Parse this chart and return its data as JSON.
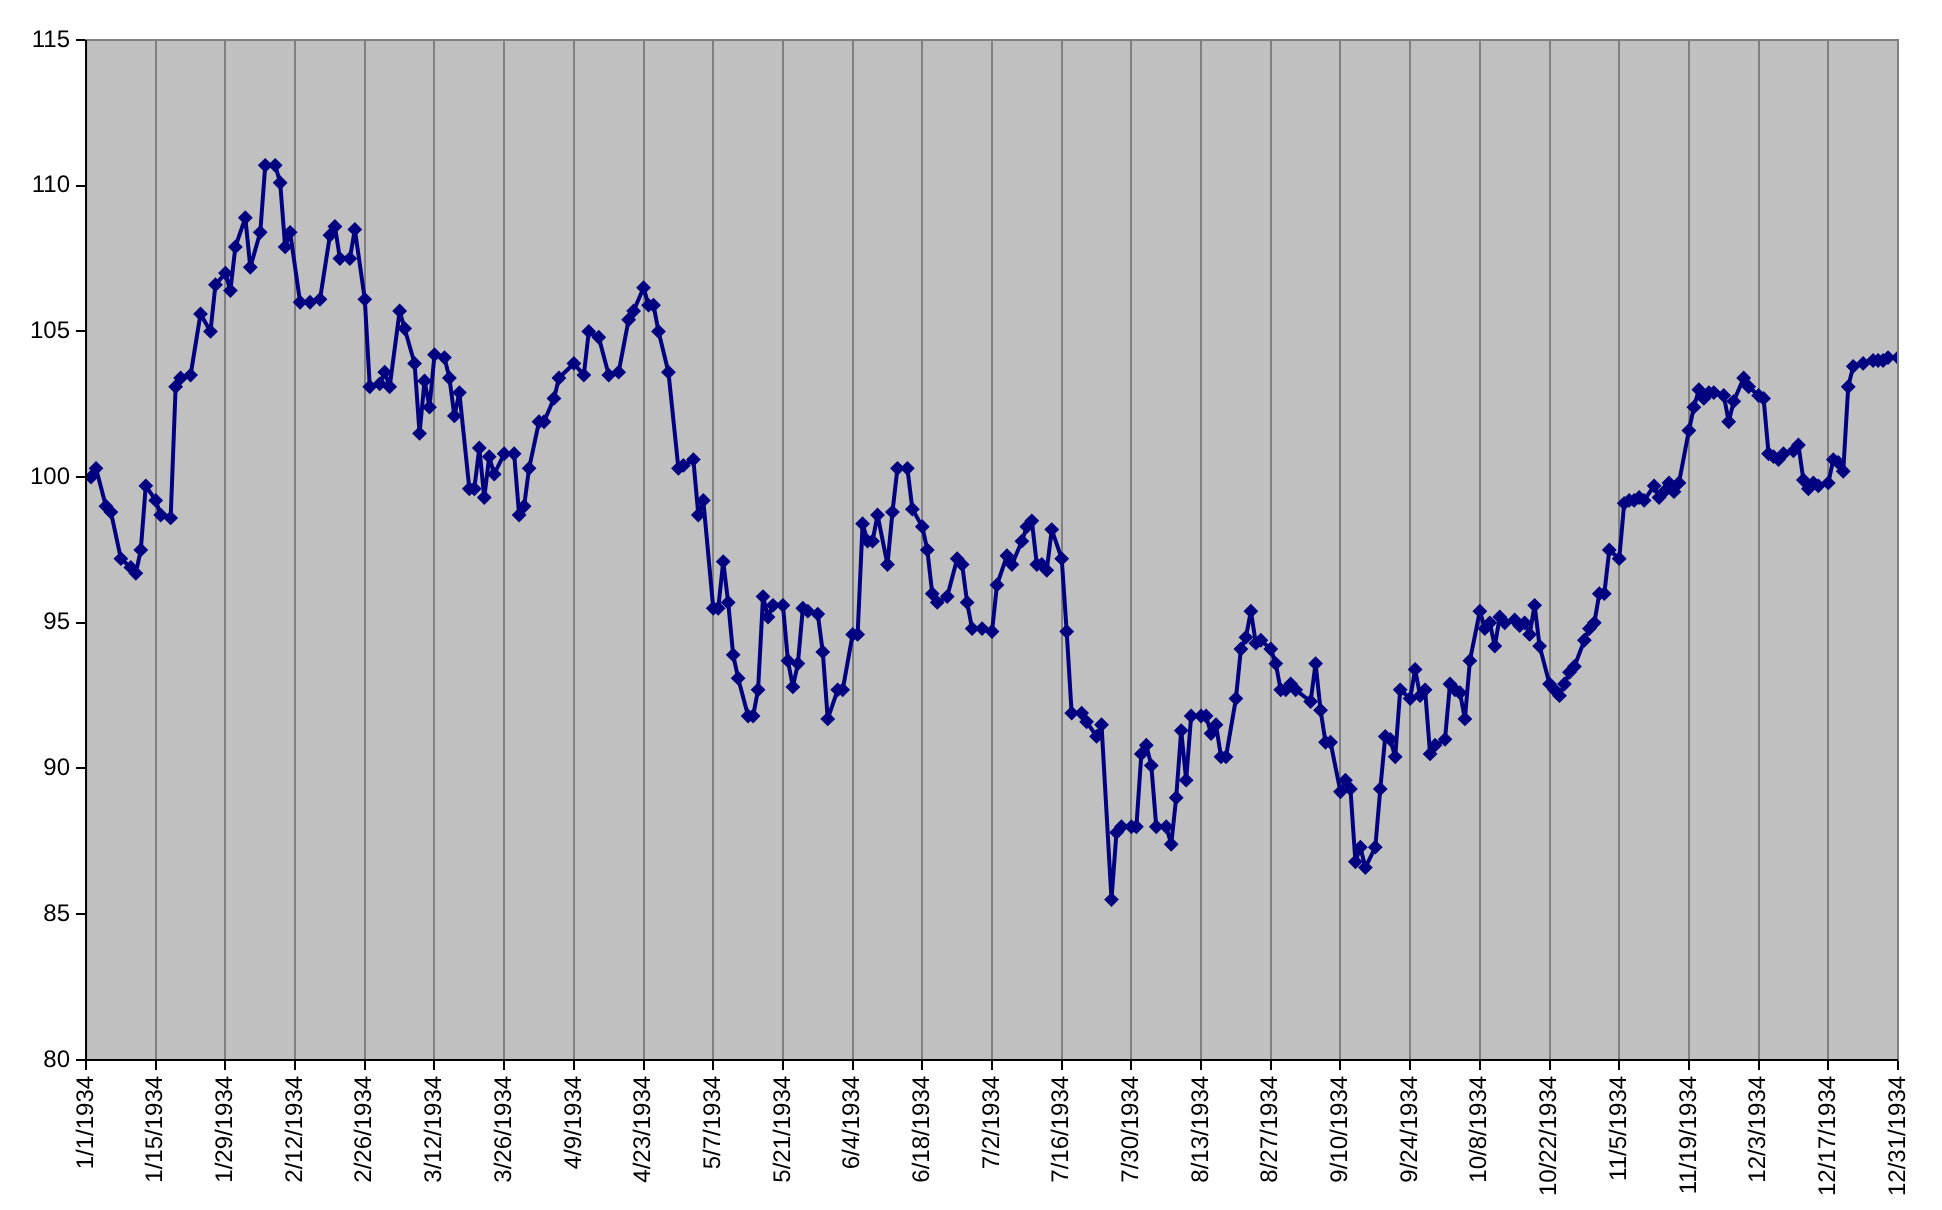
{
  "chart_data": {
    "type": "line",
    "x": [
      "1934-01-02",
      "1934-01-03",
      "1934-01-05",
      "1934-01-06",
      "1934-01-08",
      "1934-01-10",
      "1934-01-11",
      "1934-01-12",
      "1934-01-13",
      "1934-01-15",
      "1934-01-16",
      "1934-01-18",
      "1934-01-19",
      "1934-01-20",
      "1934-01-22",
      "1934-01-24",
      "1934-01-26",
      "1934-01-27",
      "1934-01-29",
      "1934-01-30",
      "1934-01-31",
      "1934-02-02",
      "1934-02-03",
      "1934-02-05",
      "1934-02-06",
      "1934-02-08",
      "1934-02-09",
      "1934-02-10",
      "1934-02-11",
      "1934-02-13",
      "1934-02-15",
      "1934-02-17",
      "1934-02-19",
      "1934-02-20",
      "1934-02-21",
      "1934-02-23",
      "1934-02-24",
      "1934-02-26",
      "1934-02-27",
      "1934-03-01",
      "1934-03-02",
      "1934-03-03",
      "1934-03-05",
      "1934-03-06",
      "1934-03-08",
      "1934-03-09",
      "1934-03-10",
      "1934-03-11",
      "1934-03-12",
      "1934-03-14",
      "1934-03-15",
      "1934-03-16",
      "1934-03-17",
      "1934-03-19",
      "1934-03-20",
      "1934-03-21",
      "1934-03-22",
      "1934-03-23",
      "1934-03-24",
      "1934-03-26",
      "1934-03-28",
      "1934-03-29",
      "1934-03-30",
      "1934-03-31",
      "1934-04-02",
      "1934-04-03",
      "1934-04-05",
      "1934-04-06",
      "1934-04-09",
      "1934-04-11",
      "1934-04-12",
      "1934-04-14",
      "1934-04-16",
      "1934-04-18",
      "1934-04-20",
      "1934-04-21",
      "1934-04-23",
      "1934-04-24",
      "1934-04-25",
      "1934-04-26",
      "1934-04-28",
      "1934-04-30",
      "1934-05-01",
      "1934-05-03",
      "1934-05-04",
      "1934-05-05",
      "1934-05-07",
      "1934-05-08",
      "1934-05-09",
      "1934-05-10",
      "1934-05-11",
      "1934-05-12",
      "1934-05-14",
      "1934-05-15",
      "1934-05-16",
      "1934-05-17",
      "1934-05-18",
      "1934-05-19",
      "1934-05-21",
      "1934-05-22",
      "1934-05-23",
      "1934-05-24",
      "1934-05-25",
      "1934-05-26",
      "1934-05-28",
      "1934-05-29",
      "1934-05-30",
      "1934-06-01",
      "1934-06-02",
      "1934-06-04",
      "1934-06-05",
      "1934-06-06",
      "1934-06-07",
      "1934-06-08",
      "1934-06-09",
      "1934-06-11",
      "1934-06-12",
      "1934-06-13",
      "1934-06-15",
      "1934-06-16",
      "1934-06-18",
      "1934-06-19",
      "1934-06-20",
      "1934-06-21",
      "1934-06-23",
      "1934-06-25",
      "1934-06-26",
      "1934-06-27",
      "1934-06-28",
      "1934-06-30",
      "1934-07-02",
      "1934-07-03",
      "1934-07-05",
      "1934-07-06",
      "1934-07-08",
      "1934-07-09",
      "1934-07-10",
      "1934-07-11",
      "1934-07-12",
      "1934-07-13",
      "1934-07-14",
      "1934-07-16",
      "1934-07-17",
      "1934-07-18",
      "1934-07-20",
      "1934-07-21",
      "1934-07-23",
      "1934-07-24",
      "1934-07-26",
      "1934-07-27",
      "1934-07-28",
      "1934-07-30",
      "1934-07-31",
      "1934-08-01",
      "1934-08-02",
      "1934-08-03",
      "1934-08-04",
      "1934-08-06",
      "1934-08-07",
      "1934-08-08",
      "1934-08-09",
      "1934-08-10",
      "1934-08-11",
      "1934-08-13",
      "1934-08-14",
      "1934-08-15",
      "1934-08-16",
      "1934-08-17",
      "1934-08-18",
      "1934-08-20",
      "1934-08-21",
      "1934-08-22",
      "1934-08-23",
      "1934-08-24",
      "1934-08-25",
      "1934-08-27",
      "1934-08-28",
      "1934-08-29",
      "1934-08-30",
      "1934-08-31",
      "1934-09-01",
      "1934-09-04",
      "1934-09-05",
      "1934-09-06",
      "1934-09-07",
      "1934-09-08",
      "1934-09-10",
      "1934-09-11",
      "1934-09-12",
      "1934-09-13",
      "1934-09-14",
      "1934-09-15",
      "1934-09-17",
      "1934-09-18",
      "1934-09-19",
      "1934-09-20",
      "1934-09-21",
      "1934-09-22",
      "1934-09-24",
      "1934-09-25",
      "1934-09-26",
      "1934-09-27",
      "1934-09-28",
      "1934-09-29",
      "1934-10-01",
      "1934-10-02",
      "1934-10-03",
      "1934-10-04",
      "1934-10-05",
      "1934-10-06",
      "1934-10-08",
      "1934-10-09",
      "1934-10-10",
      "1934-10-11",
      "1934-10-12",
      "1934-10-13",
      "1934-10-15",
      "1934-10-16",
      "1934-10-17",
      "1934-10-18",
      "1934-10-19",
      "1934-10-20",
      "1934-10-22",
      "1934-10-23",
      "1934-10-24",
      "1934-10-25",
      "1934-10-26",
      "1934-10-27",
      "1934-10-29",
      "1934-10-30",
      "1934-10-31",
      "1934-11-01",
      "1934-11-02",
      "1934-11-03",
      "1934-11-05",
      "1934-11-06",
      "1934-11-07",
      "1934-11-08",
      "1934-11-09",
      "1934-11-10",
      "1934-11-12",
      "1934-11-13",
      "1934-11-14",
      "1934-11-15",
      "1934-11-16",
      "1934-11-17",
      "1934-11-19",
      "1934-11-20",
      "1934-11-21",
      "1934-11-22",
      "1934-11-23",
      "1934-11-24",
      "1934-11-26",
      "1934-11-27",
      "1934-11-28",
      "1934-11-30",
      "1934-12-01",
      "1934-12-03",
      "1934-12-04",
      "1934-12-05",
      "1934-12-06",
      "1934-12-07",
      "1934-12-08",
      "1934-12-10",
      "1934-12-11",
      "1934-12-12",
      "1934-12-13",
      "1934-12-14",
      "1934-12-15",
      "1934-12-17",
      "1934-12-18",
      "1934-12-19",
      "1934-12-20",
      "1934-12-21",
      "1934-12-22",
      "1934-12-24",
      "1934-12-26",
      "1934-12-27",
      "1934-12-28",
      "1934-12-29",
      "1934-12-31"
    ],
    "series": [
      {
        "color": "#000080",
        "values": [
          100.0,
          100.3,
          99.0,
          98.8,
          97.2,
          96.9,
          96.7,
          97.5,
          99.7,
          99.2,
          98.7,
          98.6,
          103.1,
          103.4,
          103.5,
          105.6,
          105.0,
          106.6,
          107.0,
          106.4,
          107.9,
          108.9,
          107.2,
          108.4,
          110.7,
          110.7,
          110.1,
          107.9,
          108.4,
          106.0,
          106.0,
          106.1,
          108.3,
          108.6,
          107.5,
          107.5,
          108.5,
          106.1,
          103.1,
          103.2,
          103.6,
          103.1,
          105.7,
          105.1,
          103.9,
          101.5,
          103.3,
          102.4,
          104.2,
          104.1,
          103.4,
          102.1,
          102.9,
          99.6,
          99.6,
          101.0,
          99.3,
          100.7,
          100.1,
          100.8,
          100.8,
          98.7,
          99.0,
          100.3,
          101.9,
          101.9,
          102.7,
          103.4,
          103.9,
          103.5,
          105.0,
          104.8,
          103.5,
          103.6,
          105.4,
          105.7,
          106.5,
          105.9,
          105.9,
          105.0,
          103.6,
          100.3,
          100.4,
          100.6,
          98.7,
          99.2,
          95.5,
          95.5,
          97.1,
          95.7,
          93.9,
          93.1,
          91.8,
          91.8,
          92.7,
          95.9,
          95.2,
          95.6,
          95.6,
          93.7,
          92.8,
          93.6,
          95.5,
          95.4,
          95.3,
          94.0,
          91.7,
          92.7,
          92.7,
          94.6,
          94.6,
          98.4,
          97.8,
          97.8,
          98.7,
          97.0,
          98.8,
          100.3,
          100.3,
          98.9,
          98.3,
          97.5,
          96.0,
          95.7,
          95.9,
          97.2,
          97.0,
          95.7,
          94.8,
          94.8,
          94.7,
          96.3,
          97.3,
          97.0,
          97.8,
          98.3,
          98.5,
          97.0,
          97.0,
          96.8,
          98.2,
          97.2,
          94.7,
          91.9,
          91.9,
          91.6,
          91.1,
          91.5,
          85.5,
          87.8,
          88.0,
          88.0,
          88.0,
          90.5,
          90.8,
          90.1,
          88.0,
          88.0,
          87.4,
          89.0,
          91.3,
          89.6,
          91.8,
          91.8,
          91.8,
          91.2,
          91.5,
          90.4,
          90.4,
          92.4,
          94.1,
          94.5,
          95.4,
          94.3,
          94.4,
          94.1,
          93.6,
          92.7,
          92.7,
          92.9,
          92.7,
          92.3,
          93.6,
          92.0,
          90.9,
          90.9,
          89.2,
          89.6,
          89.3,
          86.8,
          87.3,
          86.6,
          87.3,
          89.3,
          91.1,
          91.0,
          90.4,
          92.7,
          92.4,
          93.4,
          92.5,
          92.7,
          90.5,
          90.8,
          91.0,
          92.9,
          92.7,
          92.6,
          91.7,
          93.7,
          95.4,
          94.8,
          95.0,
          94.2,
          95.2,
          95.0,
          95.1,
          94.9,
          95.0,
          94.6,
          95.6,
          94.2,
          92.9,
          92.7,
          92.5,
          92.9,
          93.3,
          93.5,
          94.4,
          94.8,
          95.0,
          96.0,
          96.0,
          97.5,
          97.2,
          99.1,
          99.2,
          99.2,
          99.3,
          99.2,
          99.7,
          99.3,
          99.5,
          99.8,
          99.5,
          99.8,
          101.6,
          102.4,
          103.0,
          102.7,
          102.9,
          102.9,
          102.8,
          101.9,
          102.6,
          103.4,
          103.1,
          102.8,
          102.7,
          100.8,
          100.7,
          100.6,
          100.8,
          100.9,
          101.1,
          99.9,
          99.6,
          99.8,
          99.7,
          99.8,
          100.6,
          100.5,
          100.2,
          103.1,
          103.8,
          103.9,
          104.0,
          104.0,
          104.0,
          104.1,
          104.1
        ]
      }
    ],
    "xlim": [
      "1934-01-01",
      "1934-12-31"
    ],
    "xticks": [
      {
        "value": "1934-01-01",
        "label": "1/1/1934"
      },
      {
        "value": "1934-01-15",
        "label": "1/15/1934"
      },
      {
        "value": "1934-01-29",
        "label": "1/29/1934"
      },
      {
        "value": "1934-02-12",
        "label": "2/12/1934"
      },
      {
        "value": "1934-02-26",
        "label": "2/26/1934"
      },
      {
        "value": "1934-03-12",
        "label": "3/12/1934"
      },
      {
        "value": "1934-03-26",
        "label": "3/26/1934"
      },
      {
        "value": "1934-04-09",
        "label": "4/9/1934"
      },
      {
        "value": "1934-04-23",
        "label": "4/23/1934"
      },
      {
        "value": "1934-05-07",
        "label": "5/7/1934"
      },
      {
        "value": "1934-05-21",
        "label": "5/21/1934"
      },
      {
        "value": "1934-06-04",
        "label": "6/4/1934"
      },
      {
        "value": "1934-06-18",
        "label": "6/18/1934"
      },
      {
        "value": "1934-07-02",
        "label": "7/2/1934"
      },
      {
        "value": "1934-07-16",
        "label": "7/16/1934"
      },
      {
        "value": "1934-07-30",
        "label": "7/30/1934"
      },
      {
        "value": "1934-08-13",
        "label": "8/13/1934"
      },
      {
        "value": "1934-08-27",
        "label": "8/27/1934"
      },
      {
        "value": "1934-09-10",
        "label": "9/10/1934"
      },
      {
        "value": "1934-09-24",
        "label": "9/24/1934"
      },
      {
        "value": "1934-10-08",
        "label": "10/8/1934"
      },
      {
        "value": "1934-10-22",
        "label": "10/22/1934"
      },
      {
        "value": "1934-11-05",
        "label": "11/5/1934"
      },
      {
        "value": "1934-11-19",
        "label": "11/19/1934"
      },
      {
        "value": "1934-12-03",
        "label": "12/3/1934"
      },
      {
        "value": "1934-12-17",
        "label": "12/17/1934"
      },
      {
        "value": "1934-12-31",
        "label": "12/31/1934"
      }
    ],
    "ylim": [
      80,
      115
    ],
    "yticks": [
      80,
      85,
      90,
      95,
      100,
      105,
      110,
      115
    ],
    "grid": "x",
    "legend": false,
    "marker": "diamond",
    "line_style": "solid"
  }
}
